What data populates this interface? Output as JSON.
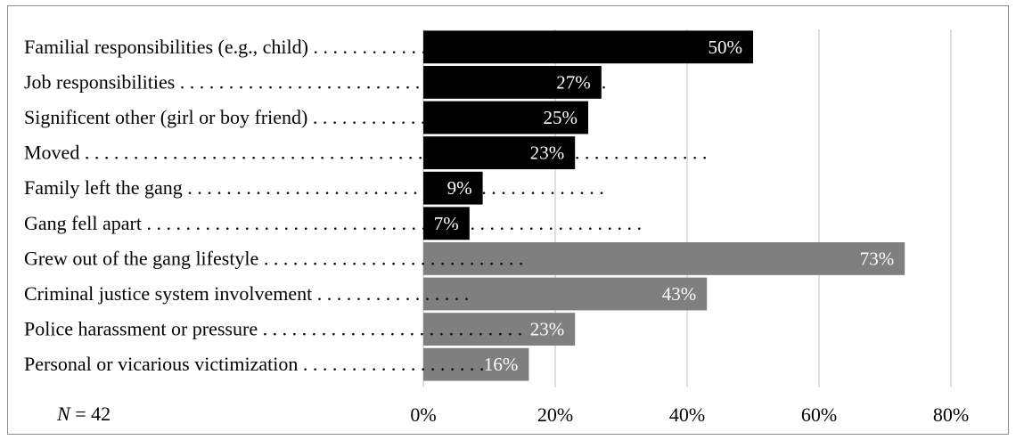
{
  "chart_data": {
    "type": "bar",
    "orientation": "horizontal",
    "categories": [
      "Familial responsibilities (e.g., child)",
      "Job responsibilities",
      "Significent other (girl or boy friend)",
      "Moved",
      "Family left the gang",
      "Gang fell apart",
      "Grew out of the gang lifestyle",
      "Criminal justice system involvement",
      "Police harassment or pressure",
      "Personal or vicarious victimization"
    ],
    "values": [
      50,
      27,
      25,
      23,
      9,
      7,
      73,
      43,
      23,
      16
    ],
    "value_labels": [
      "50%",
      "27%",
      "25%",
      "23%",
      "9%",
      "7%",
      "73%",
      "43%",
      "23%",
      "16%"
    ],
    "bar_colors": [
      "#000000",
      "#000000",
      "#000000",
      "#000000",
      "#000000",
      "#000000",
      "#7f7f7f",
      "#7f7f7f",
      "#7f7f7f",
      "#7f7f7f"
    ],
    "xlim": [
      0,
      80
    ],
    "x_ticks": [
      0,
      20,
      40,
      60,
      80
    ],
    "x_tick_labels": [
      "0%",
      "20%",
      "40%",
      "60%",
      "80%"
    ],
    "grid": true,
    "title": "",
    "xlabel": "",
    "ylabel": ""
  },
  "note": {
    "n_symbol": "N",
    "n_text": " = 42"
  },
  "colors": {
    "grid": "#bfbfbf",
    "frame": "#8c8c8c"
  }
}
